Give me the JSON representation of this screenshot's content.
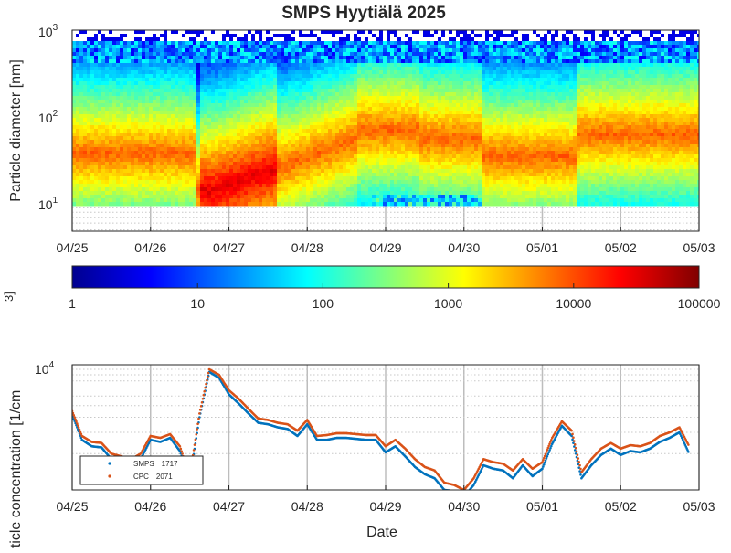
{
  "title": "SMPS Hyytiälä 2025",
  "colors": {
    "smps": "#0072bd",
    "cpc": "#d95319",
    "axis": "#262626",
    "grid": "#bdbdbd"
  },
  "date_ticks": [
    "04/25",
    "04/26",
    "04/27",
    "04/28",
    "04/29",
    "04/30",
    "05/01",
    "05/02",
    "05/03"
  ],
  "chart_data": [
    {
      "type": "heatmap",
      "title": "SMPS Hyytiälä 2025",
      "ylabel": "Particle diameter [nm]",
      "xlabel": "",
      "x_range": [
        "2025-04-25",
        "2025-05-03"
      ],
      "y_scale": "log",
      "y_range": [
        10,
        1000
      ],
      "y_ticks": [
        10,
        100,
        1000
      ],
      "y_tick_labels": [
        {
          "base": "10",
          "exp": "1"
        },
        {
          "base": "10",
          "exp": "2"
        },
        {
          "base": "10",
          "exp": "3"
        }
      ],
      "colormap": "jet",
      "grid": true
    },
    {
      "type": "colorbar",
      "scale": "log",
      "range": [
        1,
        100000
      ],
      "tick_labels": [
        "1",
        "10",
        "100",
        "1000",
        "10000",
        "100000"
      ],
      "partial_label": "3]"
    },
    {
      "type": "scatter",
      "ylabel": "article concentration [1/cm",
      "xlabel": "Date",
      "y_scale": "log",
      "y_tick_labels": [
        {
          "base": "10",
          "exp": "4"
        }
      ],
      "legend_position": "bottom-left",
      "grid": true,
      "series": [
        {
          "name": "SMPS",
          "legend_value": "1717",
          "values": [
            [
              "04/25 00:00",
              4200
            ],
            [
              "04/25 03:00",
              2600
            ],
            [
              "04/25 06:00",
              2300
            ],
            [
              "04/25 09:00",
              2250
            ],
            [
              "04/25 12:00",
              1800
            ],
            [
              "04/25 15:00",
              1750
            ],
            [
              "04/25 18:00",
              1650
            ],
            [
              "04/25 21:00",
              1800
            ],
            [
              "04/26 00:00",
              2600
            ],
            [
              "04/26 03:00",
              2500
            ],
            [
              "04/26 06:00",
              2700
            ],
            [
              "04/26 09:00",
              2100
            ],
            [
              "04/26 12:00",
              1200
            ],
            [
              "04/26 15:00",
              4000
            ],
            [
              "04/26 18:00",
              9500
            ],
            [
              "04/26 21:00",
              8500
            ],
            [
              "04/27 00:00",
              6200
            ],
            [
              "04/27 03:00",
              5200
            ],
            [
              "04/27 06:00",
              4300
            ],
            [
              "04/27 09:00",
              3600
            ],
            [
              "04/27 12:00",
              3500
            ],
            [
              "04/27 15:00",
              3300
            ],
            [
              "04/27 18:00",
              3200
            ],
            [
              "04/27 21:00",
              2800
            ],
            [
              "04/28 00:00",
              3500
            ],
            [
              "04/28 03:00",
              2600
            ],
            [
              "04/28 06:00",
              2600
            ],
            [
              "04/28 09:00",
              2700
            ],
            [
              "04/28 12:00",
              2700
            ],
            [
              "04/28 15:00",
              2650
            ],
            [
              "04/28 18:00",
              2600
            ],
            [
              "04/28 21:00",
              2600
            ],
            [
              "04/29 00:00",
              2050
            ],
            [
              "04/29 03:00",
              2300
            ],
            [
              "04/29 06:00",
              1900
            ],
            [
              "04/29 09:00",
              1550
            ],
            [
              "04/29 12:00",
              1350
            ],
            [
              "04/29 15:00",
              1250
            ],
            [
              "04/29 18:00",
              1000
            ],
            [
              "04/29 21:00",
              980
            ],
            [
              "04/30 00:00",
              880
            ],
            [
              "04/30 03:00",
              1100
            ],
            [
              "04/30 06:00",
              1600
            ],
            [
              "04/30 09:00",
              1500
            ],
            [
              "04/30 12:00",
              1450
            ],
            [
              "04/30 15:00",
              1250
            ],
            [
              "04/30 18:00",
              1600
            ],
            [
              "04/30 21:00",
              1300
            ],
            [
              "05/01 00:00",
              1500
            ],
            [
              "05/01 03:00",
              2400
            ],
            [
              "05/01 06:00",
              3400
            ],
            [
              "05/01 09:00",
              2800
            ],
            [
              "05/01 12:00",
              1250
            ],
            [
              "05/01 15:00",
              1600
            ],
            [
              "05/01 18:00",
              1950
            ],
            [
              "05/01 21:00",
              2200
            ],
            [
              "05/02 00:00",
              1950
            ],
            [
              "05/02 03:00",
              2100
            ],
            [
              "05/02 06:00",
              2050
            ],
            [
              "05/02 09:00",
              2200
            ],
            [
              "05/02 12:00",
              2500
            ],
            [
              "05/02 15:00",
              2700
            ],
            [
              "05/02 18:00",
              3000
            ],
            [
              "05/02 21:00",
              2000
            ]
          ]
        },
        {
          "name": "CPC",
          "legend_value": "2071",
          "values": [
            [
              "04/25 00:00",
              4500
            ],
            [
              "04/25 03:00",
              2800
            ],
            [
              "04/25 06:00",
              2500
            ],
            [
              "04/25 09:00",
              2450
            ],
            [
              "04/25 12:00",
              2000
            ],
            [
              "04/25 15:00",
              1900
            ],
            [
              "04/25 18:00",
              1800
            ],
            [
              "04/25 21:00",
              2000
            ],
            [
              "04/26 00:00",
              2800
            ],
            [
              "04/26 03:00",
              2700
            ],
            [
              "04/26 06:00",
              2900
            ],
            [
              "04/26 09:00",
              2300
            ],
            [
              "04/26 12:00",
              1300
            ],
            [
              "04/26 15:00",
              4300
            ],
            [
              "04/26 18:00",
              10000
            ],
            [
              "04/26 21:00",
              9000
            ],
            [
              "04/27 00:00",
              6700
            ],
            [
              "04/27 03:00",
              5700
            ],
            [
              "04/27 06:00",
              4700
            ],
            [
              "04/27 09:00",
              3900
            ],
            [
              "04/27 12:00",
              3800
            ],
            [
              "04/27 15:00",
              3600
            ],
            [
              "04/27 18:00",
              3500
            ],
            [
              "04/27 21:00",
              3100
            ],
            [
              "04/28 00:00",
              3800
            ],
            [
              "04/28 03:00",
              2800
            ],
            [
              "04/28 06:00",
              2850
            ],
            [
              "04/28 09:00",
              2950
            ],
            [
              "04/28 12:00",
              2950
            ],
            [
              "04/28 15:00",
              2900
            ],
            [
              "04/28 18:00",
              2850
            ],
            [
              "04/28 21:00",
              2850
            ],
            [
              "04/29 00:00",
              2300
            ],
            [
              "04/29 03:00",
              2600
            ],
            [
              "04/29 06:00",
              2200
            ],
            [
              "04/29 09:00",
              1800
            ],
            [
              "04/29 12:00",
              1550
            ],
            [
              "04/29 15:00",
              1450
            ],
            [
              "04/29 18:00",
              1150
            ],
            [
              "04/29 21:00",
              1100
            ],
            [
              "04/30 00:00",
              1000
            ],
            [
              "04/30 03:00",
              1250
            ],
            [
              "04/30 06:00",
              1800
            ],
            [
              "04/30 09:00",
              1700
            ],
            [
              "04/30 12:00",
              1650
            ],
            [
              "04/30 15:00",
              1450
            ],
            [
              "04/30 18:00",
              1800
            ],
            [
              "04/30 21:00",
              1500
            ],
            [
              "05/01 00:00",
              1700
            ],
            [
              "05/01 03:00",
              2700
            ],
            [
              "05/01 06:00",
              3700
            ],
            [
              "05/01 09:00",
              3100
            ],
            [
              "05/01 12:00",
              1400
            ],
            [
              "05/01 15:00",
              1800
            ],
            [
              "05/01 18:00",
              2200
            ],
            [
              "05/01 21:00",
              2450
            ],
            [
              "05/02 00:00",
              2200
            ],
            [
              "05/02 03:00",
              2350
            ],
            [
              "05/02 06:00",
              2300
            ],
            [
              "05/02 09:00",
              2450
            ],
            [
              "05/02 12:00",
              2800
            ],
            [
              "05/02 15:00",
              3000
            ],
            [
              "05/02 18:00",
              3300
            ],
            [
              "05/02 21:00",
              2300
            ]
          ]
        }
      ]
    }
  ]
}
